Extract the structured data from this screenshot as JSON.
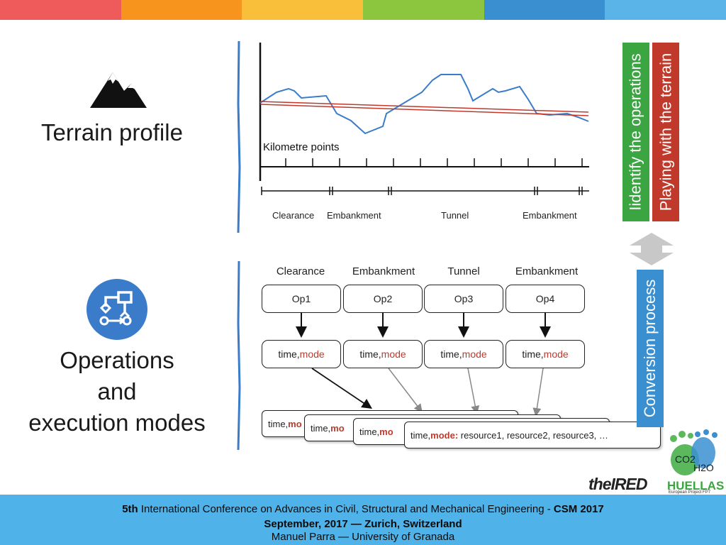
{
  "topbar": {
    "colors": [
      "#ef5a5a",
      "#f7941d",
      "#f9bf3b",
      "#8cc63f",
      "#3a8fd1",
      "#5ab4e8"
    ]
  },
  "terrain": {
    "title": "Terrain profile",
    "icon": "mountain-icon"
  },
  "operations": {
    "title_lines": [
      "Operations",
      "and",
      "execution modes"
    ],
    "icon": "workflow-icon"
  },
  "profile_chart": {
    "xlabel": "Kilometre points",
    "segments": [
      "Clearance",
      "Embankment",
      "Tunnel",
      "Embankment"
    ],
    "line_color": "#3a7cc9",
    "fit_color": "#c0392b"
  },
  "op_headers": [
    "Clearance",
    "Embankment",
    "Tunnel",
    "Embankment"
  ],
  "ops": [
    "Op1",
    "Op2",
    "Op3",
    "Op4"
  ],
  "time_mode": {
    "time": "time,",
    "mode": "mode"
  },
  "stack": {
    "prefix": "time, ",
    "mode": "mode:",
    "resources": "resource1, resource2, resource3, …",
    "partial": "mo"
  },
  "sidebars": {
    "identify": "Iidentify the operations",
    "identify_color": "#3aa541",
    "playing": "Playing with the terrain",
    "playing_color": "#c0392b",
    "conversion": "Conversion process",
    "conversion_color": "#3a8fd1"
  },
  "logos": {
    "ired": "theIRED",
    "huellas": "HUELLAS",
    "huellas_sub": "European Project FP7",
    "co2": "CO2",
    "h2o": "H2O"
  },
  "footer": {
    "line1_a": "5th",
    "line1_b": " International Conference on Advances in Civil, Structural and Mechanical Engineering - ",
    "line1_c": "CSM 2017",
    "line2": "September, 2017 — Zurich, Switzerland",
    "line3": "Manuel Parra — University of Granada"
  }
}
